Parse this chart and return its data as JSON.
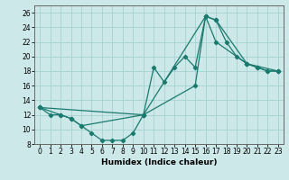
{
  "xlabel": "Humidex (Indice chaleur)",
  "xlim": [
    -0.5,
    23.5
  ],
  "ylim": [
    8,
    27
  ],
  "yticks": [
    8,
    10,
    12,
    14,
    16,
    18,
    20,
    22,
    24,
    26
  ],
  "xticks": [
    0,
    1,
    2,
    3,
    4,
    5,
    6,
    7,
    8,
    9,
    10,
    11,
    12,
    13,
    14,
    15,
    16,
    17,
    18,
    19,
    20,
    21,
    22,
    23
  ],
  "bg_color": "#cce8e8",
  "line_color": "#1a7a6e",
  "line1_x": [
    0,
    1,
    2,
    3,
    4,
    5,
    6,
    7,
    8,
    9,
    10,
    11,
    12,
    13,
    14,
    15,
    16,
    17,
    18,
    19,
    20,
    21,
    22,
    23
  ],
  "line1_y": [
    13,
    12,
    12,
    11.5,
    10.5,
    9.5,
    8.5,
    8.5,
    8.5,
    9.5,
    12,
    18.5,
    16.5,
    18.5,
    20,
    18.5,
    25.5,
    25,
    22,
    20,
    19,
    18.5,
    18,
    18
  ],
  "line2_x": [
    0,
    2,
    3,
    4,
    10,
    15,
    16,
    17,
    20,
    21,
    22,
    23
  ],
  "line2_y": [
    13,
    12,
    11.5,
    10.5,
    12,
    16,
    25.5,
    25,
    19,
    18.5,
    18,
    18
  ],
  "line3_x": [
    0,
    10,
    16,
    17,
    20,
    23
  ],
  "line3_y": [
    13,
    12,
    25.5,
    22,
    19,
    18
  ]
}
